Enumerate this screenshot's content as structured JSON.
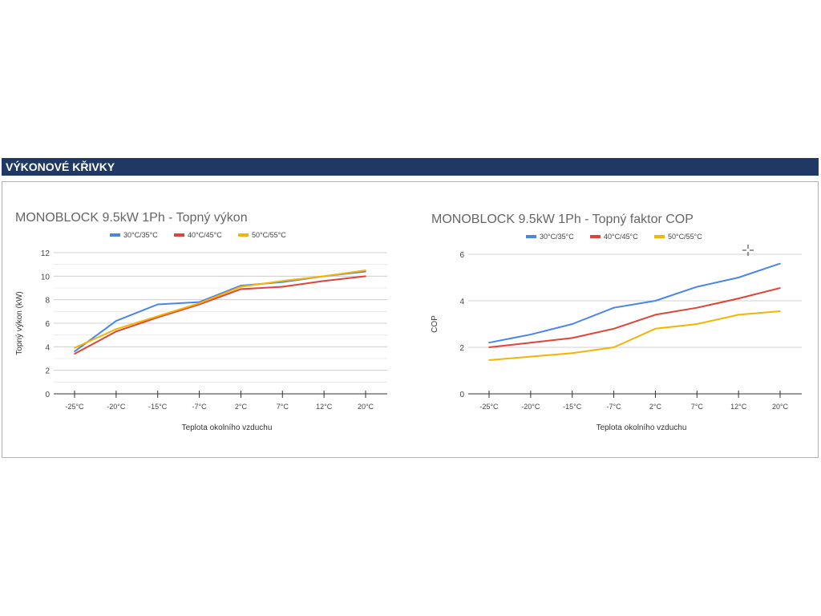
{
  "section_header": "VÝKONOVÉ KŘIVKY",
  "chart_data": [
    {
      "type": "line",
      "title": "MONOBLOCK 9.5kW 1Ph - Topný výkon",
      "xlabel": "Teplota okolního vzduchu",
      "ylabel": "Topný výkon (kW)",
      "categories": [
        "-25°C",
        "-20°C",
        "-15°C",
        "-7°C",
        "2°C",
        "7°C",
        "12°C",
        "20°C"
      ],
      "ylim": [
        0,
        12
      ],
      "yticks": [
        0,
        2,
        4,
        6,
        8,
        10,
        12
      ],
      "minor_grid_step": 1,
      "legend": "top",
      "series": [
        {
          "name": "30°C/35°C",
          "color": "#4a86e8",
          "values": [
            3.6,
            6.2,
            7.6,
            7.8,
            9.2,
            9.5,
            10.0,
            10.4
          ]
        },
        {
          "name": "40°C/45°C",
          "color": "#e04436",
          "values": [
            3.4,
            5.3,
            6.5,
            7.6,
            8.9,
            9.1,
            9.6,
            10.0
          ]
        },
        {
          "name": "50°C/55°C",
          "color": "#f4b400",
          "values": [
            3.9,
            5.5,
            6.6,
            7.7,
            9.1,
            9.6,
            10.0,
            10.5
          ]
        }
      ]
    },
    {
      "type": "line",
      "title": "MONOBLOCK 9.5kW 1Ph - Topný faktor COP",
      "xlabel": "Teplota okolního vzduchu",
      "ylabel": "COP",
      "categories": [
        "-25°C",
        "-20°C",
        "-15°C",
        "-7°C",
        "2°C",
        "7°C",
        "12°C",
        "20°C"
      ],
      "ylim": [
        0,
        6
      ],
      "yticks": [
        0,
        2,
        4,
        6
      ],
      "minor_grid_step": null,
      "legend": "top",
      "series": [
        {
          "name": "30°C/35°C",
          "color": "#4a86e8",
          "values": [
            2.2,
            2.55,
            3.0,
            3.7,
            4.0,
            4.6,
            5.0,
            5.6
          ]
        },
        {
          "name": "40°C/45°C",
          "color": "#e04436",
          "values": [
            2.0,
            2.2,
            2.4,
            2.8,
            3.4,
            3.7,
            4.1,
            4.55
          ]
        },
        {
          "name": "50°C/55°C",
          "color": "#f4b400",
          "values": [
            1.45,
            1.6,
            1.75,
            2.0,
            2.8,
            3.0,
            3.4,
            3.55
          ]
        }
      ]
    }
  ]
}
